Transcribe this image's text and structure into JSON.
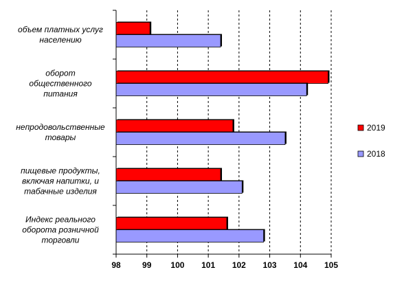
{
  "chart_data": {
    "type": "bar",
    "orientation": "horizontal",
    "categories": [
      [
        "объем платных услуг",
        "населению"
      ],
      [
        "оборот",
        "общественного",
        "питания"
      ],
      [
        "непродовольственные",
        "товары"
      ],
      [
        "пищевые продукты,",
        "включая напитки, и",
        "табачные изделия"
      ],
      [
        "Индекс реального",
        "оборота розничной",
        "торговли"
      ]
    ],
    "series": [
      {
        "name": "2019",
        "color": "#ff0000",
        "values": [
          99.1,
          104.9,
          101.8,
          101.4,
          101.6
        ]
      },
      {
        "name": "2018",
        "color": "#9999ff",
        "values": [
          101.4,
          104.2,
          103.5,
          102.1,
          102.8
        ]
      }
    ],
    "xlim": [
      98,
      105
    ],
    "ticks": [
      "98",
      "99",
      "100",
      "101",
      "102",
      "103",
      "104",
      "105"
    ],
    "grid": true,
    "legend_position": "right"
  }
}
